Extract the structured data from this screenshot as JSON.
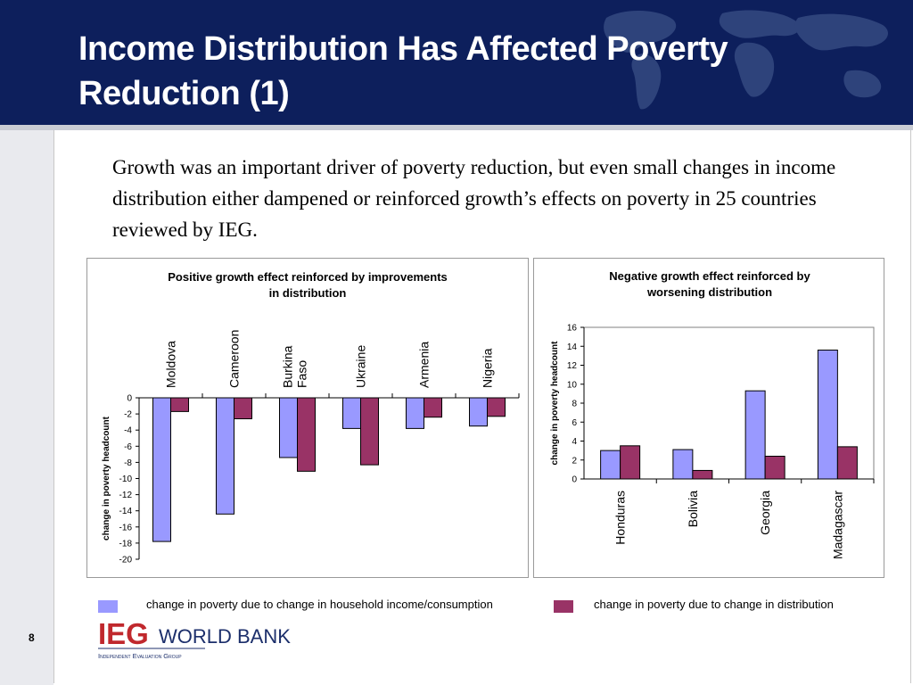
{
  "slide": {
    "title_line1": "Income Distribution Has Affected Poverty",
    "title_line2": "Reduction (1)",
    "intro_text": "Growth was an important driver of poverty reduction, but even small changes in income distribution either dampened or reinforced growth’s effects on poverty in 25 countries reviewed by IEG.",
    "page_number": "8"
  },
  "legend": {
    "series1_label": "change in poverty due to change in household income/consumption",
    "series2_label": "change in poverty due to change in distribution",
    "series1_color": "#9999ff",
    "series2_color": "#993366"
  },
  "logo": {
    "mark": "IEG",
    "name": "WORLD BANK",
    "subtitle": "Independent Evaluation Group"
  },
  "chart_data": [
    {
      "type": "bar",
      "title": "Positive growth effect reinforced by improvements in distribution",
      "title_lines": [
        "Positive growth effect reinforced by improvements",
        "in distribution"
      ],
      "ylabel": "change in poverty headcount",
      "xlabel": "",
      "categories": [
        "Moldova",
        "Cameroon",
        "Burkina Faso",
        "Ukraine",
        "Armenia",
        "Nigeria"
      ],
      "series": [
        {
          "values": [
            -17.8,
            -14.4,
            -7.4,
            -3.8,
            -3.8,
            -3.5
          ]
        },
        {
          "values": [
            -1.7,
            -2.6,
            -9.1,
            -8.3,
            -2.4,
            -2.3
          ]
        }
      ],
      "ylim": [
        -20,
        0
      ],
      "yticks": [
        0,
        -2,
        -4,
        -6,
        -8,
        -10,
        -12,
        -14,
        -16,
        -18,
        -20
      ],
      "grid": false,
      "legend": "bottom"
    },
    {
      "type": "bar",
      "title": "Negative growth effect reinforced by worsening distribution",
      "title_lines": [
        "Negative growth effect reinforced by",
        "worsening distribution"
      ],
      "ylabel": "change in poverty headcount",
      "xlabel": "",
      "categories": [
        "Honduras",
        "Bolivia",
        "Georgia",
        "Madagascar"
      ],
      "series": [
        {
          "values": [
            3.0,
            3.1,
            9.3,
            13.6
          ]
        },
        {
          "values": [
            3.5,
            0.9,
            2.4,
            3.4
          ]
        }
      ],
      "ylim": [
        0,
        16
      ],
      "yticks": [
        0,
        2,
        4,
        6,
        8,
        10,
        12,
        14,
        16
      ],
      "grid": false,
      "legend": "bottom"
    }
  ]
}
